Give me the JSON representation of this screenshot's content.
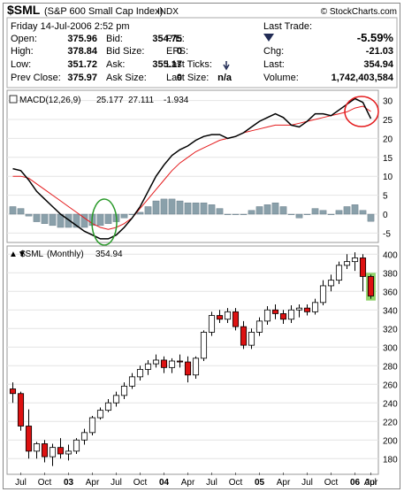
{
  "header": {
    "symbol": "$SML",
    "name": "(S&P 600 Small Cap Index)",
    "exchange": "INDX",
    "brand": "© StockCharts.com",
    "date": "Friday   14-Jul-2006  2:52 pm",
    "last_trade_label": "Last Trade:",
    "fields": [
      {
        "label": "Open:",
        "value": "375.96"
      },
      {
        "label": "High:",
        "value": "378.84"
      },
      {
        "label": "Low:",
        "value": "351.72"
      },
      {
        "label": "Prev Close:",
        "value": "375.97"
      }
    ],
    "fields2": [
      {
        "label": "Bid:",
        "value": "354.75"
      },
      {
        "label": "Bid Size:",
        "value": "0"
      },
      {
        "label": "Ask:",
        "value": "355.17"
      },
      {
        "label": "Ask Size:",
        "value": "0"
      }
    ],
    "fields3": [
      {
        "label": "P/E:",
        "value": ""
      },
      {
        "label": "EPS:",
        "value": ""
      },
      {
        "label": "Last Ticks:",
        "value": ""
      },
      {
        "label": "Last Size:",
        "value": "n/a"
      }
    ],
    "last_trade": [
      {
        "label": "",
        "value": "-5.59%"
      },
      {
        "label": "Chg:",
        "value": "-21.03"
      },
      {
        "label": "Last:",
        "value": "354.94"
      },
      {
        "label": "Volume:",
        "value": "1,742,403,584"
      }
    ]
  },
  "chart_data": [
    {
      "type": "line",
      "name": "MACD panel",
      "legend": {
        "label": "MACD(12,26,9)",
        "macd": "25.177",
        "signal": "27.111",
        "hist": "-1.934"
      },
      "colors": {
        "macd": "#000000",
        "signal": "#e41a1c",
        "histogram": "#8aa0aa",
        "annotation": "#e41a1c",
        "annotation2": "#2a9a2a"
      },
      "ylim": [
        -7,
        32
      ],
      "yticks": [
        -5,
        0,
        5,
        10,
        15,
        20,
        25,
        30
      ],
      "n": 46,
      "macd": [
        12,
        11.5,
        9,
        6,
        4,
        2,
        0,
        -1.5,
        -3,
        -4.5,
        -5.5,
        -6.5,
        -6.5,
        -5.5,
        -3.5,
        -1,
        2,
        6,
        10,
        13,
        15.5,
        17,
        18,
        19.5,
        20.5,
        21,
        21,
        20,
        20.5,
        21.5,
        23,
        24.5,
        25.5,
        26.5,
        25.5,
        23.5,
        23,
        24.5,
        26.5,
        26.5,
        26,
        27.5,
        29,
        30.5,
        29.5,
        25.2
      ],
      "signal": [
        10,
        10,
        9.5,
        8,
        6.5,
        5,
        3.5,
        2,
        0.5,
        -1,
        -2.5,
        -3.5,
        -4,
        -3.5,
        -2.5,
        -1,
        1.5,
        4,
        6.5,
        9,
        11.5,
        13.5,
        15,
        16.5,
        17.5,
        18.5,
        19.5,
        20,
        20.5,
        21.5,
        22,
        22.5,
        23,
        23.5,
        23.5,
        23.5,
        24,
        24.5,
        25,
        25.5,
        26,
        26.5,
        27,
        28,
        28.5,
        27.1
      ],
      "histogram": [
        2,
        1.5,
        -0.5,
        -2,
        -2.5,
        -3,
        -3.5,
        -3.5,
        -3.5,
        -3.5,
        -3,
        -3,
        -2.5,
        -2,
        -1,
        0,
        0.5,
        2,
        3.5,
        4,
        4,
        3.5,
        3,
        3,
        3,
        2.5,
        1.5,
        0,
        0,
        0,
        1,
        2,
        2.5,
        3,
        2,
        0,
        -1,
        0,
        1.5,
        1,
        0,
        1,
        2,
        2.5,
        1,
        -1.9
      ],
      "annotations": [
        "circle at MACD/signal crossover (2003)",
        "circle at MACD/signal crossover (2006)"
      ]
    },
    {
      "type": "candlestick",
      "name": "price panel",
      "legend": {
        "symbol": "$SML",
        "period": "(Monthly)",
        "value": "354.94"
      },
      "colors": {
        "up": "#ffffff",
        "down": "#dd1111",
        "outline": "#000000",
        "highlight": "#66cc44"
      },
      "ylim": [
        165,
        405
      ],
      "yticks": [
        180,
        200,
        220,
        240,
        260,
        280,
        300,
        320,
        340,
        360,
        380,
        400
      ],
      "x_labels": [
        "Jul",
        "Oct",
        "03",
        "Apr",
        "Jul",
        "Oct",
        "04",
        "Apr",
        "Jul",
        "Oct",
        "05",
        "Apr",
        "Jul",
        "Oct",
        "06",
        "Apr",
        "Jul"
      ],
      "ohlc": [
        [
          255,
          262,
          240,
          250
        ],
        [
          250,
          252,
          210,
          215
        ],
        [
          215,
          233,
          180,
          188
        ],
        [
          188,
          198,
          180,
          196
        ],
        [
          196,
          200,
          176,
          182
        ],
        [
          182,
          196,
          172,
          192
        ],
        [
          192,
          202,
          180,
          185
        ],
        [
          185,
          195,
          178,
          188
        ],
        [
          188,
          202,
          185,
          200
        ],
        [
          200,
          212,
          195,
          208
        ],
        [
          208,
          226,
          205,
          224
        ],
        [
          224,
          235,
          222,
          232
        ],
        [
          232,
          244,
          230,
          240
        ],
        [
          240,
          252,
          236,
          248
        ],
        [
          248,
          262,
          244,
          258
        ],
        [
          258,
          272,
          255,
          268
        ],
        [
          268,
          280,
          264,
          276
        ],
        [
          276,
          286,
          270,
          282
        ],
        [
          282,
          292,
          278,
          286
        ],
        [
          286,
          290,
          272,
          278
        ],
        [
          278,
          288,
          272,
          285
        ],
        [
          285,
          292,
          278,
          284
        ],
        [
          284,
          290,
          262,
          270
        ],
        [
          270,
          290,
          266,
          288
        ],
        [
          288,
          318,
          285,
          316
        ],
        [
          316,
          338,
          312,
          334
        ],
        [
          334,
          340,
          326,
          330
        ],
        [
          330,
          342,
          326,
          338
        ],
        [
          338,
          342,
          318,
          322
        ],
        [
          322,
          328,
          298,
          302
        ],
        [
          302,
          320,
          298,
          316
        ],
        [
          316,
          332,
          312,
          328
        ],
        [
          328,
          344,
          324,
          340
        ],
        [
          340,
          346,
          330,
          336
        ],
        [
          336,
          340,
          325,
          330
        ],
        [
          330,
          345,
          326,
          340
        ],
        [
          340,
          346,
          332,
          342
        ],
        [
          342,
          346,
          334,
          338
        ],
        [
          338,
          352,
          335,
          348
        ],
        [
          348,
          372,
          345,
          366
        ],
        [
          366,
          378,
          360,
          372
        ],
        [
          372,
          392,
          368,
          388
        ],
        [
          388,
          400,
          384,
          392
        ],
        [
          392,
          402,
          382,
          396
        ],
        [
          396,
          400,
          360,
          376
        ],
        [
          376,
          378,
          352,
          355
        ]
      ]
    }
  ]
}
